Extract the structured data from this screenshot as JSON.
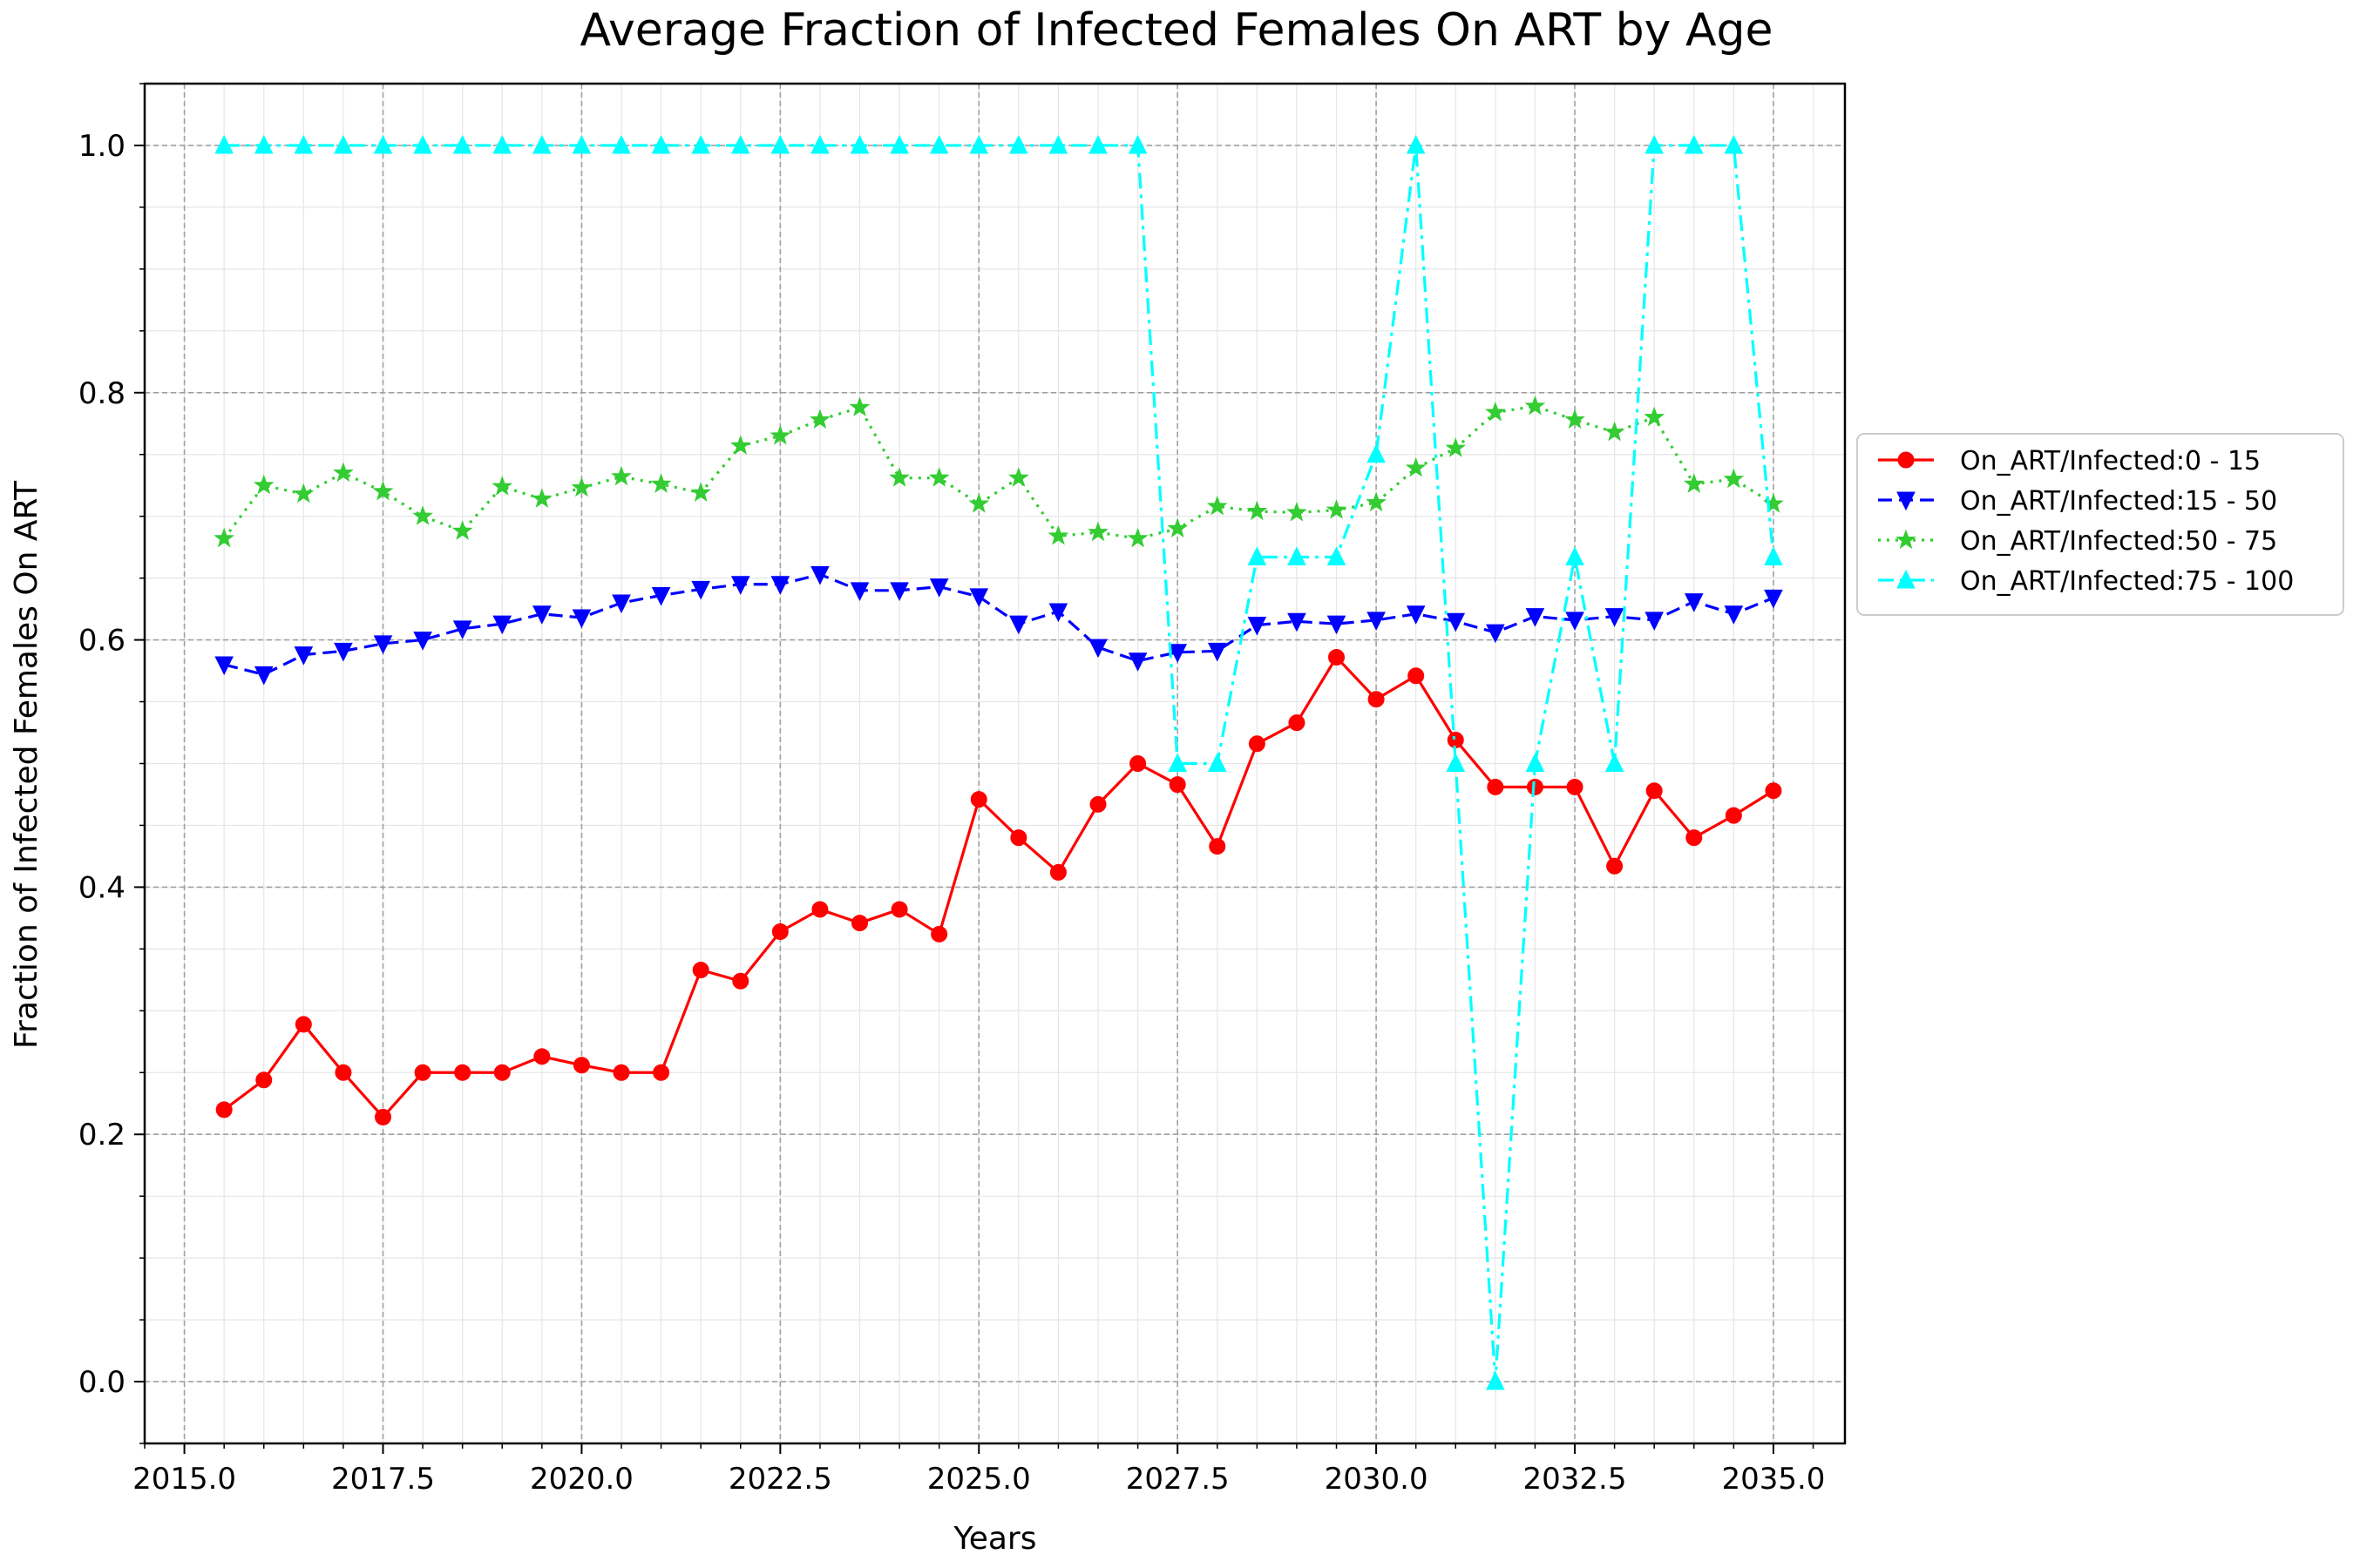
{
  "chart_data": {
    "type": "line",
    "title": "Average Fraction of Infected Females On ART by Age",
    "xlabel": "Years",
    "ylabel": "Fraction of Infected Females On ART",
    "xlim": [
      2014.5,
      2035.9
    ],
    "ylim": [
      -0.05,
      1.05
    ],
    "xticks": [
      "2015.0",
      "2017.5",
      "2020.0",
      "2022.5",
      "2025.0",
      "2027.5",
      "2030.0",
      "2032.5",
      "2035.0"
    ],
    "yticks": [
      "0.0",
      "0.2",
      "0.4",
      "0.6",
      "0.8",
      "1.0"
    ],
    "grid": true,
    "legend_position": "right, outside the plot",
    "x": [
      2015.5,
      2016.0,
      2016.5,
      2017.0,
      2017.5,
      2018.0,
      2018.5,
      2019.0,
      2019.5,
      2020.0,
      2020.5,
      2021.0,
      2021.5,
      2022.0,
      2022.5,
      2023.0,
      2023.5,
      2024.0,
      2024.5,
      2025.0,
      2025.5,
      2026.0,
      2026.5,
      2027.0,
      2027.5,
      2028.0,
      2028.5,
      2029.0,
      2029.5,
      2030.0,
      2030.5,
      2031.0,
      2031.5,
      2032.0,
      2032.5,
      2033.0,
      2033.5,
      2034.0,
      2034.5,
      2035.0
    ],
    "series": [
      {
        "name": "On_ART/Infected:0 - 15",
        "color": "#ff0000",
        "linestyle": "solid",
        "marker": "circle",
        "values": [
          0.22,
          0.244,
          0.289,
          0.25,
          0.214,
          0.25,
          0.25,
          0.25,
          0.263,
          0.256,
          0.25,
          0.25,
          0.333,
          0.324,
          0.364,
          0.382,
          0.371,
          0.382,
          0.362,
          0.471,
          0.44,
          0.412,
          0.467,
          0.5,
          0.483,
          0.433,
          0.516,
          0.533,
          0.586,
          0.552,
          0.571,
          0.519,
          0.481,
          0.481,
          0.481,
          0.417,
          0.478,
          0.44,
          0.458,
          0.478
        ]
      },
      {
        "name": "On_ART/Infected:15 - 50",
        "color": "#0000ff",
        "linestyle": "dashed",
        "marker": "triangle-down",
        "values": [
          0.58,
          0.572,
          0.588,
          0.591,
          0.597,
          0.6,
          0.609,
          0.613,
          0.621,
          0.618,
          0.63,
          0.636,
          0.641,
          0.645,
          0.645,
          0.653,
          0.64,
          0.64,
          0.643,
          0.635,
          0.613,
          0.623,
          0.594,
          0.583,
          0.59,
          0.591,
          0.612,
          0.615,
          0.613,
          0.616,
          0.621,
          0.615,
          0.606,
          0.619,
          0.616,
          0.619,
          0.616,
          0.631,
          0.621,
          0.634
        ]
      },
      {
        "name": "On_ART/Infected:50 - 75",
        "color": "#33cc33",
        "linestyle": "dotted",
        "marker": "star",
        "values": [
          0.682,
          0.725,
          0.718,
          0.735,
          0.72,
          0.7,
          0.688,
          0.724,
          0.714,
          0.723,
          0.732,
          0.726,
          0.719,
          0.757,
          0.765,
          0.778,
          0.788,
          0.731,
          0.731,
          0.71,
          0.731,
          0.684,
          0.687,
          0.682,
          0.69,
          0.708,
          0.704,
          0.703,
          0.705,
          0.711,
          0.739,
          0.755,
          0.784,
          0.789,
          0.778,
          0.768,
          0.78,
          0.726,
          0.73,
          0.71
        ]
      },
      {
        "name": "On_ART/Infected:75 - 100",
        "color": "#00ffff",
        "linestyle": "dashdot",
        "marker": "triangle-up",
        "values": [
          1.0,
          1.0,
          1.0,
          1.0,
          1.0,
          1.0,
          1.0,
          1.0,
          1.0,
          1.0,
          1.0,
          1.0,
          1.0,
          1.0,
          1.0,
          1.0,
          1.0,
          1.0,
          1.0,
          1.0,
          1.0,
          1.0,
          1.0,
          1.0,
          0.5,
          0.5,
          0.667,
          0.667,
          0.667,
          0.75,
          1.0,
          0.5,
          0.0,
          0.5,
          0.667,
          0.5,
          1.0,
          1.0,
          1.0,
          0.667
        ]
      }
    ]
  }
}
